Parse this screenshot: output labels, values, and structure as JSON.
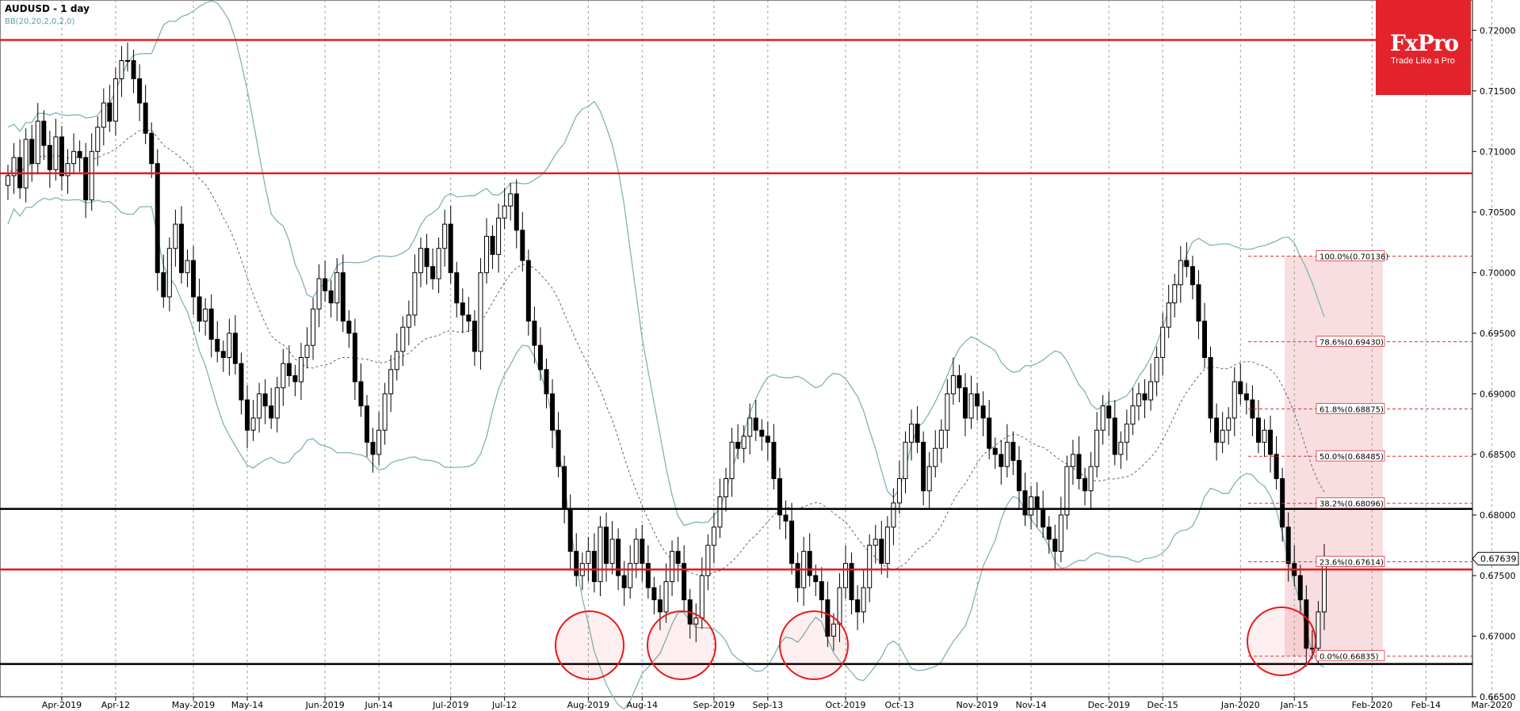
{
  "header": {
    "symbol": "AUDUSD - 1 day",
    "indicator": "BB(20,20,2,0,2,0)"
  },
  "logo": {
    "name": "FxPro",
    "tagline": "Trade Like a Pro"
  },
  "colors": {
    "resistance": "#e8191b",
    "support": "#000000",
    "bollinger": "#7fb3b8",
    "fib_zone": "#f5d3d6",
    "bull": "#ffffff",
    "bear": "#000000"
  },
  "chart_data": {
    "type": "candlestick",
    "symbol": "AUDUSD",
    "timeframe": "1 day",
    "ylim": [
      0.665,
      0.7225
    ],
    "yticks": [
      0.72,
      0.715,
      0.71,
      0.705,
      0.7,
      0.695,
      0.69,
      0.685,
      0.68,
      0.675,
      0.67,
      0.665
    ],
    "ytick_labels": [
      "0.72000",
      "0.71500",
      "0.71000",
      "0.70500",
      "0.70000",
      "0.69500",
      "0.69000",
      "0.68500",
      "0.68000",
      "0.67500",
      "0.67000",
      "0.66500"
    ],
    "xticks": [
      {
        "label": "Apr-2019",
        "day": 9
      },
      {
        "label": "Apr-12",
        "day": 18
      },
      {
        "label": "May-2019",
        "day": 31
      },
      {
        "label": "May-14",
        "day": 40
      },
      {
        "label": "Jun-2019",
        "day": 53
      },
      {
        "label": "Jun-14",
        "day": 62
      },
      {
        "label": "Jul-2019",
        "day": 74
      },
      {
        "label": "Jul-12",
        "day": 83
      },
      {
        "label": "Aug-2019",
        "day": 97
      },
      {
        "label": "Aug-14",
        "day": 106
      },
      {
        "label": "Sep-2019",
        "day": 118
      },
      {
        "label": "Sep-13",
        "day": 127
      },
      {
        "label": "Oct-2019",
        "day": 140
      },
      {
        "label": "Oct-13",
        "day": 149
      },
      {
        "label": "Nov-2019",
        "day": 162
      },
      {
        "label": "Nov-14",
        "day": 171
      },
      {
        "label": "Dec-2019",
        "day": 184
      },
      {
        "label": "Dec-15",
        "day": 193
      },
      {
        "label": "Jan-2020",
        "day": 206
      },
      {
        "label": "Jan-15",
        "day": 215
      },
      {
        "label": "Feb-2020",
        "day": 228
      },
      {
        "label": "Feb-14",
        "day": 237
      },
      {
        "label": "Mar-2020",
        "day": 248
      }
    ],
    "hlines": [
      {
        "price": 0.7192,
        "type": "resistance"
      },
      {
        "price": 0.7082,
        "type": "resistance"
      },
      {
        "price": 0.6805,
        "type": "support"
      },
      {
        "price": 0.6755,
        "type": "resistance"
      },
      {
        "price": 0.6677,
        "type": "support"
      }
    ],
    "current_price": {
      "label": "0.67639",
      "price": 0.67639
    },
    "fibonacci": [
      {
        "label": "100.0%(0.70136)",
        "price": 0.70136
      },
      {
        "label": "78.6%(0.69430)",
        "price": 0.6943
      },
      {
        "label": "61.8%(0.68875)",
        "price": 0.68875
      },
      {
        "label": "50.0%(0.68485)",
        "price": 0.68485
      },
      {
        "label": "38.2%(0.68096)",
        "price": 0.68096
      },
      {
        "label": "23.6%(0.67614)",
        "price": 0.67614
      },
      {
        "label": "0.0%(0.66835)",
        "price": 0.66835
      }
    ],
    "closes": [
      0.708,
      0.7095,
      0.707,
      0.711,
      0.709,
      0.7125,
      0.7105,
      0.7085,
      0.7112,
      0.708,
      0.709,
      0.71,
      0.7095,
      0.706,
      0.71,
      0.712,
      0.714,
      0.7125,
      0.716,
      0.7175,
      0.7175,
      0.716,
      0.714,
      0.7115,
      0.709,
      0.7,
      0.698,
      0.702,
      0.704,
      0.7,
      0.701,
      0.698,
      0.696,
      0.697,
      0.6945,
      0.6935,
      0.693,
      0.695,
      0.6925,
      0.6895,
      0.687,
      0.688,
      0.69,
      0.689,
      0.688,
      0.6905,
      0.6925,
      0.6915,
      0.691,
      0.693,
      0.694,
      0.697,
      0.6995,
      0.6985,
      0.6975,
      0.7,
      0.696,
      0.695,
      0.691,
      0.689,
      0.686,
      0.685,
      0.687,
      0.69,
      0.692,
      0.6935,
      0.6955,
      0.6965,
      0.7,
      0.702,
      0.7005,
      0.6995,
      0.702,
      0.704,
      0.7,
      0.6975,
      0.6965,
      0.696,
      0.6935,
      0.7,
      0.703,
      0.7015,
      0.7045,
      0.7055,
      0.7065,
      0.7035,
      0.701,
      0.696,
      0.694,
      0.692,
      0.69,
      0.687,
      0.684,
      0.6805,
      0.677,
      0.675,
      0.676,
      0.677,
      0.6745,
      0.679,
      0.676,
      0.678,
      0.675,
      0.674,
      0.676,
      0.678,
      0.676,
      0.674,
      0.673,
      0.672,
      0.6745,
      0.677,
      0.676,
      0.673,
      0.671,
      0.6715,
      0.675,
      0.6775,
      0.679,
      0.6815,
      0.683,
      0.686,
      0.6855,
      0.6865,
      0.688,
      0.687,
      0.6865,
      0.686,
      0.683,
      0.68,
      0.6795,
      0.676,
      0.674,
      0.677,
      0.675,
      0.6745,
      0.673,
      0.67,
      0.671,
      0.674,
      0.676,
      0.673,
      0.672,
      0.674,
      0.6775,
      0.678,
      0.676,
      0.679,
      0.681,
      0.683,
      0.686,
      0.6875,
      0.686,
      0.682,
      0.684,
      0.6855,
      0.687,
      0.69,
      0.6915,
      0.6905,
      0.688,
      0.69,
      0.689,
      0.688,
      0.6855,
      0.685,
      0.684,
      0.686,
      0.6845,
      0.682,
      0.68,
      0.6815,
      0.6805,
      0.679,
      0.678,
      0.677,
      0.68,
      0.684,
      0.685,
      0.683,
      0.682,
      0.684,
      0.687,
      0.689,
      0.688,
      0.685,
      0.686,
      0.6875,
      0.689,
      0.69,
      0.6895,
      0.691,
      0.693,
      0.6955,
      0.6975,
      0.699,
      0.701,
      0.7005,
      0.699,
      0.696,
      0.693,
      0.688,
      0.686,
      0.687,
      0.688,
      0.691,
      0.69,
      0.6895,
      0.688,
      0.686,
      0.687,
      0.685,
      0.683,
      0.679,
      0.676,
      0.675,
      0.673,
      0.669,
      0.669,
      0.672,
      0.6764
    ]
  }
}
